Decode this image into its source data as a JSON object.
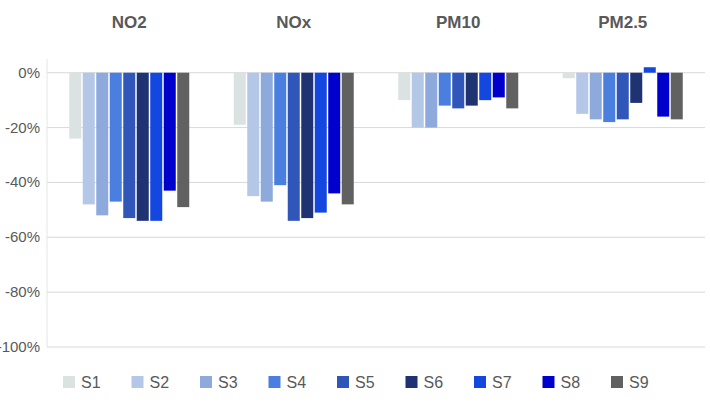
{
  "chart_data": {
    "type": "bar",
    "categories": [
      "NO2",
      "NOx",
      "PM10",
      "PM2.5"
    ],
    "series": [
      {
        "name": "S1",
        "color": "#dbe2e2",
        "values": [
          -24,
          -19,
          -10,
          -2
        ]
      },
      {
        "name": "S2",
        "color": "#b4c7e7",
        "values": [
          -48,
          -45,
          -20,
          -15
        ]
      },
      {
        "name": "S3",
        "color": "#8eaadc",
        "values": [
          -52,
          -47,
          -20,
          -17
        ]
      },
      {
        "name": "S4",
        "color": "#4a7fe0",
        "values": [
          -47,
          -41,
          -12,
          -18
        ]
      },
      {
        "name": "S5",
        "color": "#2f56b8",
        "values": [
          -53,
          -54,
          -13,
          -17
        ]
      },
      {
        "name": "S6",
        "color": "#1f3372",
        "values": [
          -54,
          -53,
          -12,
          -11
        ]
      },
      {
        "name": "S7",
        "color": "#1347e0",
        "values": [
          -54,
          -51,
          -10,
          2
        ]
      },
      {
        "name": "S8",
        "color": "#0000cc",
        "values": [
          -43,
          -44,
          -9,
          -16
        ]
      },
      {
        "name": "S9",
        "color": "#616161",
        "values": [
          -49,
          -48,
          -13,
          -17
        ]
      }
    ],
    "ylim": [
      -100,
      5
    ],
    "yticks": [
      {
        "value": 0,
        "label": "0%"
      },
      {
        "value": -20,
        "label": "-20%"
      },
      {
        "value": -40,
        "label": "-40%"
      },
      {
        "value": -60,
        "label": "-60%"
      },
      {
        "value": -80,
        "label": "-80%"
      },
      {
        "value": -100,
        "label": "-100%"
      }
    ],
    "grid": true,
    "legend": "bottom"
  }
}
